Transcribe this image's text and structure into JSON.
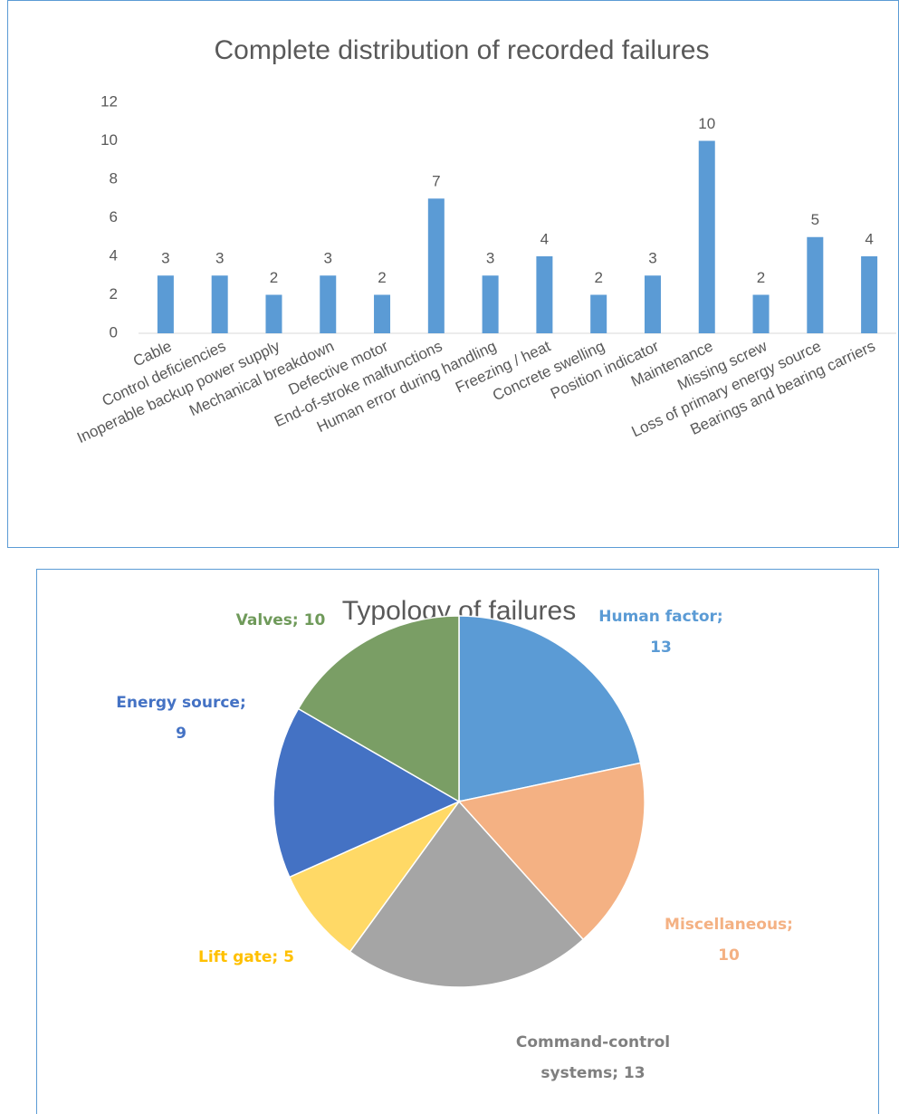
{
  "chart_data": [
    {
      "type": "bar",
      "title": "Complete distribution of recorded failures",
      "categories": [
        "Cable",
        "Control deficiencies",
        "Inoperable backup power supply",
        "Mechanical breakdown",
        "Defective motor",
        "End-of-stroke malfunctions",
        "Human error during handling",
        "Freezing / heat",
        "Concrete swelling",
        "Position indicator",
        "Maintenance",
        "Missing screw",
        "Loss of primary energy source",
        "Bearings and bearing carriers"
      ],
      "values": [
        3,
        3,
        2,
        3,
        2,
        7,
        3,
        4,
        2,
        3,
        10,
        2,
        5,
        4
      ],
      "color": "#5b9bd5",
      "ylim": [
        0,
        12
      ],
      "yticks": [
        0,
        2,
        4,
        6,
        8,
        10,
        12
      ],
      "grid": false
    },
    {
      "type": "pie",
      "title": "Typology of failures",
      "categories": [
        "Human factor",
        "Miscellaneous",
        "Command-control systems",
        "Lift gate",
        "Energy source",
        "Valves"
      ],
      "values": [
        13,
        10,
        13,
        5,
        9,
        10
      ],
      "value_labels": [
        [
          "Human factor;",
          "13"
        ],
        [
          "Miscellaneous;",
          "10"
        ],
        [
          "Command-control",
          "systems; 13"
        ],
        [
          "Lift gate; 5"
        ],
        [
          "Energy source;",
          "9"
        ],
        [
          "Valves; 10"
        ]
      ],
      "colors": [
        "#5b9bd5",
        "#f4b183",
        "#a5a5a5",
        "#ffd966",
        "#4472c4",
        "#7a9e65"
      ]
    }
  ]
}
